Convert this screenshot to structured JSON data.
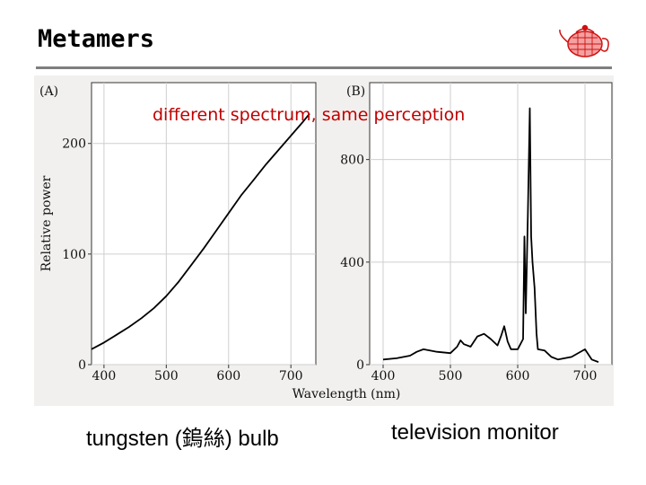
{
  "slide": {
    "title": "Metamers",
    "overlay_text": "different spectrum, same perception",
    "caption_left": "tungsten (鎢絲) bulb",
    "caption_right": "television monitor",
    "logo_icon": "wireframe-teapot-icon"
  },
  "colors": {
    "overlay_text": "#c00000",
    "rule": "#7f7f7f",
    "logo": "#d01010"
  },
  "chart_data": [
    {
      "type": "line",
      "panel_label": "(A)",
      "ylabel": "Relative power",
      "xlabel": "",
      "xlim": [
        380,
        740
      ],
      "ylim": [
        0,
        255
      ],
      "xticks": [
        400,
        500,
        600,
        700
      ],
      "yticks": [
        0,
        100,
        200
      ],
      "grid": true,
      "x": [
        380,
        400,
        420,
        440,
        460,
        480,
        500,
        520,
        540,
        560,
        580,
        600,
        620,
        640,
        660,
        680,
        700,
        720,
        730
      ],
      "y": [
        14,
        20,
        27,
        34,
        42,
        51,
        62,
        75,
        90,
        105,
        121,
        137,
        153,
        167,
        181,
        194,
        207,
        220,
        227
      ]
    },
    {
      "type": "line",
      "panel_label": "(B)",
      "ylabel": "",
      "xlabel": "Wavelength (nm)",
      "xlim": [
        380,
        740
      ],
      "ylim": [
        0,
        1100
      ],
      "xticks": [
        400,
        500,
        600,
        700
      ],
      "yticks": [
        0,
        400,
        800
      ],
      "grid": true,
      "x": [
        400,
        420,
        440,
        450,
        460,
        480,
        500,
        510,
        515,
        520,
        530,
        540,
        550,
        560,
        570,
        575,
        580,
        585,
        590,
        600,
        608,
        610,
        612,
        615,
        618,
        620,
        622,
        625,
        628,
        630,
        640,
        650,
        660,
        680,
        700,
        710,
        720
      ],
      "y": [
        20,
        25,
        35,
        50,
        60,
        50,
        45,
        70,
        95,
        80,
        70,
        110,
        120,
        100,
        75,
        110,
        150,
        90,
        60,
        60,
        100,
        500,
        200,
        580,
        1000,
        500,
        400,
        300,
        120,
        60,
        55,
        30,
        20,
        30,
        60,
        20,
        10
      ]
    }
  ]
}
